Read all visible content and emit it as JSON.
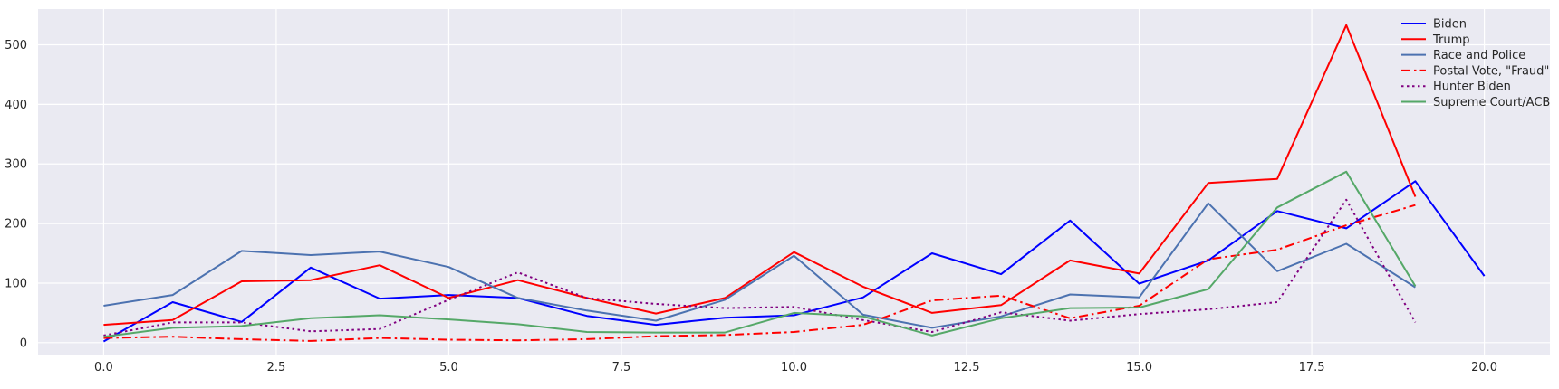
{
  "chart_data": {
    "type": "line",
    "title": "",
    "xlabel": "",
    "ylabel": "",
    "xlim": [
      -0.95,
      20.95
    ],
    "ylim": [
      -20,
      560
    ],
    "grid": true,
    "legend_position": "top-right",
    "background_color": "#eaeaf2",
    "grid_color": "#ffffff",
    "x_ticks": [
      0.0,
      2.5,
      5.0,
      7.5,
      10.0,
      12.5,
      15.0,
      17.5,
      20.0
    ],
    "x_tick_labels": [
      "0.0",
      "2.5",
      "5.0",
      "7.5",
      "10.0",
      "12.5",
      "15.0",
      "17.5",
      "20.0"
    ],
    "y_ticks": [
      0,
      100,
      200,
      300,
      400,
      500
    ],
    "y_tick_labels": [
      "0",
      "100",
      "200",
      "300",
      "400",
      "500"
    ],
    "series": [
      {
        "name": "Biden",
        "color": "#0000ff",
        "line_style": "solid",
        "x": [
          0,
          1,
          2,
          3,
          4,
          5,
          6,
          7,
          8,
          9,
          10,
          11,
          12,
          13,
          14,
          15,
          16,
          17,
          18,
          19,
          20
        ],
        "values": [
          2,
          68,
          35,
          126,
          74,
          80,
          75,
          45,
          30,
          42,
          46,
          76,
          150,
          115,
          205,
          99,
          138,
          221,
          192,
          271,
          112
        ]
      },
      {
        "name": "Trump",
        "color": "#ff0000",
        "line_style": "solid",
        "x": [
          0,
          1,
          2,
          3,
          4,
          5,
          6,
          7,
          8,
          9,
          10,
          11,
          12,
          13,
          14,
          15,
          16,
          17,
          18,
          19
        ],
        "values": [
          30,
          38,
          103,
          105,
          130,
          75,
          105,
          75,
          49,
          75,
          152,
          94,
          50,
          63,
          138,
          116,
          268,
          275,
          533,
          245
        ]
      },
      {
        "name": "Race and Police",
        "color": "#4c72b0",
        "line_style": "solid",
        "x": [
          0,
          1,
          2,
          3,
          4,
          5,
          6,
          7,
          8,
          9,
          10,
          11,
          12,
          13,
          14,
          15,
          16,
          17,
          18,
          19
        ],
        "values": [
          62,
          80,
          154,
          147,
          153,
          127,
          75,
          54,
          37,
          72,
          146,
          47,
          25,
          44,
          81,
          76,
          234,
          120,
          166,
          93
        ]
      },
      {
        "name": "Postal Vote, \"Fraud\"",
        "color": "#ff0000",
        "line_style": "dashdot",
        "x": [
          0,
          1,
          2,
          3,
          4,
          5,
          6,
          7,
          8,
          9,
          10,
          11,
          12,
          13,
          14,
          15,
          16,
          17,
          18,
          19
        ],
        "values": [
          8,
          10,
          6,
          3,
          8,
          5,
          4,
          6,
          11,
          13,
          18,
          30,
          71,
          79,
          41,
          62,
          140,
          156,
          197,
          231
        ]
      },
      {
        "name": "Hunter Biden",
        "color": "#800080",
        "line_style": "dotted",
        "x": [
          0,
          1,
          2,
          3,
          4,
          5,
          6,
          7,
          8,
          9,
          10,
          11,
          12,
          13,
          14,
          15,
          16,
          17,
          18,
          19
        ],
        "values": [
          12,
          34,
          34,
          19,
          23,
          72,
          118,
          75,
          65,
          58,
          60,
          38,
          18,
          51,
          37,
          48,
          56,
          68,
          240,
          34
        ]
      },
      {
        "name": "Supreme Court/ACB",
        "color": "#55a868",
        "line_style": "solid",
        "x": [
          0,
          1,
          2,
          3,
          4,
          5,
          6,
          7,
          8,
          9,
          10,
          11,
          12,
          13,
          14,
          15,
          16,
          17,
          18,
          19
        ],
        "values": [
          10,
          25,
          28,
          41,
          46,
          39,
          31,
          18,
          17,
          17,
          50,
          44,
          12,
          41,
          58,
          59,
          90,
          227,
          287,
          95
        ]
      }
    ]
  }
}
